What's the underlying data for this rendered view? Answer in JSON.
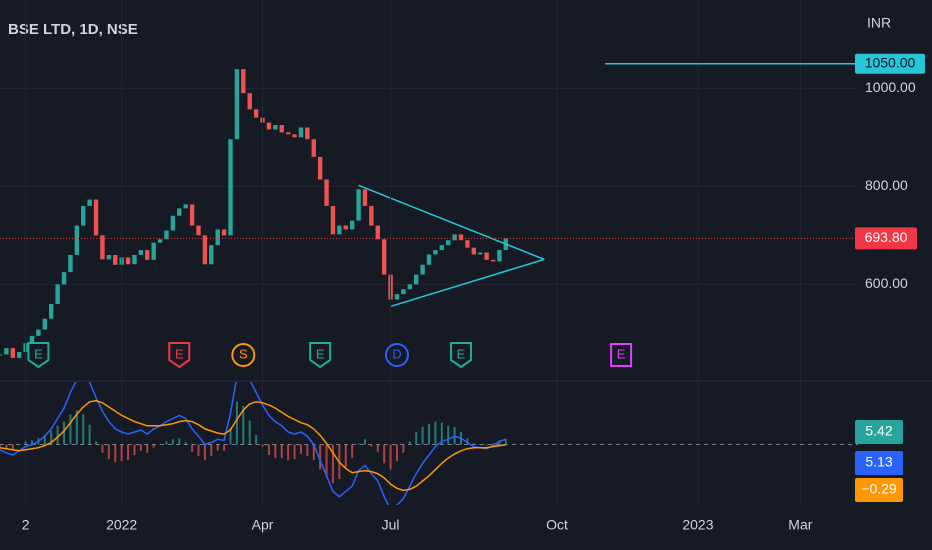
{
  "header": {
    "symbol": "BSE LTD, 1D, NSE",
    "currency": "INR"
  },
  "chart_data": [
    {
      "type": "candlestick",
      "values": [
        457,
        470,
        450,
        462,
        480,
        495,
        508,
        530,
        560,
        600,
        625,
        660,
        720,
        760,
        773,
        700,
        651,
        660,
        640,
        655,
        641,
        660,
        670,
        650,
        685,
        692,
        710,
        740,
        755,
        763,
        720,
        700,
        641,
        680,
        712,
        700,
        896,
        1039,
        990,
        957,
        940,
        930,
        916,
        925,
        910,
        906,
        900,
        920,
        896,
        860,
        814,
        760,
        702,
        720,
        712,
        730,
        794,
        760,
        720,
        692,
        620,
        569,
        580,
        590,
        600,
        620,
        640,
        661,
        670,
        680,
        690,
        702,
        690,
        675,
        661,
        665,
        650,
        647,
        670,
        693.8
      ],
      "up_color": "#26a69a",
      "down_color": "#ef5350",
      "xlim": [
        0,
        134
      ],
      "ylim": [
        405,
        1180
      ],
      "yticks": [
        {
          "value": 600,
          "label": "600.00"
        },
        {
          "value": 800,
          "label": "800.00"
        },
        {
          "value": 1000,
          "label": "1000.00"
        }
      ],
      "xticks": [
        {
          "value": 4,
          "label": "2"
        },
        {
          "value": 19,
          "label": "2022"
        },
        {
          "value": 41,
          "label": "Apr"
        },
        {
          "value": 61,
          "label": "Jul"
        },
        {
          "value": 87,
          "label": "Oct"
        },
        {
          "value": 109,
          "label": "2023"
        },
        {
          "value": 125,
          "label": "Mar"
        }
      ],
      "grid": true,
      "last_price": {
        "value": 693.8,
        "label": "693.80",
        "color": "#f23645"
      },
      "level": {
        "value": 1050,
        "label": "1050.00",
        "start": 94.5,
        "color": "#26c6da"
      },
      "trendlines": [
        {
          "x": [
            56,
            85
          ],
          "y": [
            802,
            651
          ]
        },
        {
          "x": [
            61,
            85
          ],
          "y": [
            555,
            651
          ]
        }
      ],
      "trendline_color": "#26c6da",
      "events": [
        {
          "x": 6,
          "label": "E",
          "color": "#22ab94",
          "shape": "pin"
        },
        {
          "x": 28,
          "label": "E",
          "color": "#f23645",
          "shape": "pin"
        },
        {
          "x": 38,
          "label": "S",
          "color": "#ff9800",
          "shape": "circle"
        },
        {
          "x": 50,
          "label": "E",
          "color": "#22ab94",
          "shape": "pin"
        },
        {
          "x": 62,
          "label": "D",
          "color": "#2962ff",
          "shape": "circle"
        },
        {
          "x": 72,
          "label": "E",
          "color": "#22ab94",
          "shape": "pin"
        },
        {
          "x": 97,
          "label": "E",
          "color": "#e040fb",
          "shape": "square"
        }
      ]
    },
    {
      "type": "macd",
      "xlim": [
        0,
        134
      ],
      "ylim": [
        -58,
        60
      ],
      "zero": 0,
      "series": [
        {
          "kind": "histogram",
          "color": "#26a69a",
          "down_color": "#ef5350",
          "values": [
            -2,
            -4,
            -5,
            0,
            3,
            4,
            6,
            9,
            13,
            18,
            22,
            29,
            33,
            29,
            19,
            3,
            -8,
            -14,
            -17,
            -16,
            -15,
            -10,
            -6,
            -8,
            -3,
            0,
            3,
            5,
            6,
            2,
            -7,
            -11,
            -15,
            -11,
            -6,
            -6,
            16,
            41,
            37,
            23,
            9,
            -2,
            -10,
            -13,
            -13,
            -15,
            -14,
            -9,
            -11,
            -15,
            -24,
            -31,
            -37,
            -33,
            -22,
            -13,
            1,
            5,
            -2,
            -7,
            -18,
            -24,
            -16,
            -8,
            3,
            12,
            17,
            20,
            22,
            21,
            18,
            17,
            12,
            6,
            1,
            0,
            -1,
            1,
            4,
            5.42
          ]
        },
        {
          "kind": "line",
          "color": "#2962ff",
          "values": [
            -5,
            -8,
            -10,
            -6,
            -2,
            0,
            3,
            8,
            15,
            25,
            35,
            50,
            62,
            65,
            60,
            45,
            32,
            22,
            15,
            12,
            10,
            12,
            14,
            10,
            15,
            18,
            22,
            25,
            28,
            25,
            15,
            8,
            0,
            2,
            5,
            4,
            30,
            65,
            70,
            62,
            50,
            38,
            28,
            22,
            18,
            12,
            10,
            12,
            8,
            0,
            -15,
            -30,
            -45,
            -50,
            -45,
            -40,
            -25,
            -20,
            -28,
            -35,
            -50,
            -62,
            -58,
            -52,
            -40,
            -28,
            -18,
            -10,
            -2,
            3,
            5,
            8,
            6,
            2,
            -2,
            -3,
            -4,
            -1,
            3,
            5.13
          ]
        },
        {
          "kind": "line",
          "color": "#ff9800",
          "last_label": "−0.29",
          "values": [
            -3,
            -4,
            -5,
            -6,
            -5,
            -4,
            -3,
            -1,
            2,
            7,
            13,
            21,
            29,
            36,
            41,
            42,
            40,
            36,
            32,
            28,
            25,
            22,
            20,
            18,
            18,
            18,
            19,
            20,
            22,
            23,
            22,
            19,
            15,
            13,
            11,
            10,
            14,
            24,
            33,
            39,
            41,
            40,
            38,
            35,
            31,
            27,
            24,
            21,
            19,
            15,
            9,
            1,
            -8,
            -17,
            -23,
            -27,
            -26,
            -25,
            -26,
            -28,
            -32,
            -38,
            -42,
            -44,
            -43,
            -40,
            -35,
            -30,
            -24,
            -18,
            -13,
            -9,
            -6,
            -4,
            -3,
            -3,
            -3,
            -2,
            -1,
            -0.29
          ]
        }
      ]
    }
  ]
}
